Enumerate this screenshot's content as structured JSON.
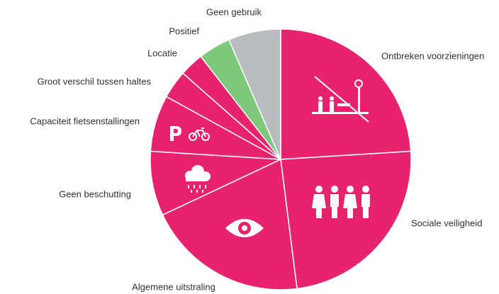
{
  "chart_data": {
    "type": "pie",
    "categories": [
      "Ontbreken voorzieningen",
      "Sociale veiligheid",
      "Algemene uitstraling",
      "Geen beschutting",
      "Capaciteit fietsenstallingen",
      "Groot verschil tussen haltes",
      "Locatie",
      "Positief",
      "Geen gebruik"
    ],
    "values": [
      24,
      24,
      20,
      8,
      7,
      3.5,
      3,
      4,
      6.5
    ],
    "colors": [
      "#e8236e",
      "#e8236e",
      "#e8236e",
      "#e8236e",
      "#e8236e",
      "#e8236e",
      "#e8236e",
      "#7dc87a",
      "#b9bcbe"
    ]
  }
}
